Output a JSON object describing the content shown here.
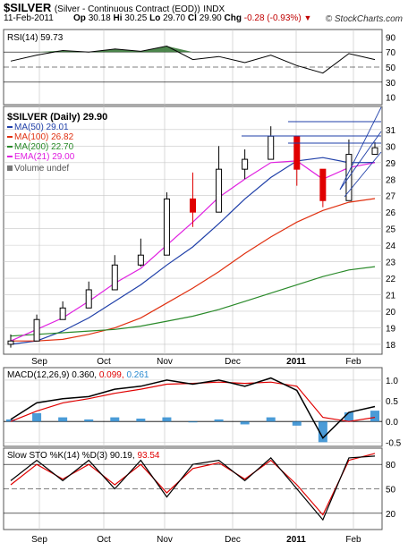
{
  "header": {
    "symbol": "$SILVER",
    "description": "(Silver - Continuous Contract (EOD))",
    "exchange": "INDX",
    "date": "11-Feb-2011",
    "open_label": "Op",
    "open": "30.18",
    "high_label": "Hi",
    "high": "30.25",
    "low_label": "Lo",
    "low": "29.70",
    "close_label": "Cl",
    "close": "29.90",
    "change_label": "Chg",
    "change": "-0.28 (-0.93%)",
    "brand": "© StockCharts.com"
  },
  "colors": {
    "ma50": "#1f3fa8",
    "ma100": "#e03010",
    "ma200": "#2a8a2a",
    "ema21": "#e020e0",
    "candle_up": "#000000",
    "candle_down": "#e00000",
    "rsi_fill": "#3a7a3a",
    "macd_line": "#000000",
    "macd_signal": "#e00000",
    "macd_hist": "#2a8ad0",
    "grid": "#c8c8c8"
  },
  "chart_data": [
    {
      "type": "line",
      "name": "rsi",
      "legend": "RSI(14) 59.73",
      "ylim": [
        0,
        100
      ],
      "yticks": [
        10,
        30,
        50,
        70,
        90
      ],
      "overbought": 70,
      "oversold": 30,
      "x": [
        "08-09",
        "08-23",
        "09-06",
        "09-20",
        "10-04",
        "10-18",
        "11-01",
        "11-15",
        "11-29",
        "12-13",
        "12-27",
        "01-10",
        "01-24",
        "02-07",
        "02-11"
      ],
      "values": [
        58,
        66,
        72,
        70,
        74,
        71,
        78,
        60,
        64,
        56,
        66,
        52,
        42,
        68,
        60
      ]
    },
    {
      "type": "candlestick",
      "name": "price",
      "title": "$SILVER (Daily) 29.90",
      "ylim": [
        17.4,
        32.4
      ],
      "yticks": [
        18,
        19,
        20,
        21,
        22,
        23,
        24,
        25,
        26,
        27,
        28,
        29,
        30,
        31
      ],
      "xticks": [
        "Sep",
        "Oct",
        "Nov",
        "Dec",
        "2011",
        "Feb"
      ],
      "x": [
        "08-09",
        "08-23",
        "09-06",
        "09-20",
        "10-04",
        "10-18",
        "11-01",
        "11-15",
        "11-29",
        "12-13",
        "12-27",
        "01-10",
        "01-24",
        "02-07",
        "02-11"
      ],
      "close": [
        18.2,
        19.5,
        20.2,
        21.3,
        22.8,
        23.4,
        26.8,
        26.0,
        28.6,
        29.2,
        30.6,
        28.6,
        26.7,
        29.5,
        29.9
      ],
      "high": [
        18.6,
        19.8,
        20.6,
        21.8,
        23.4,
        24.4,
        27.2,
        28.4,
        30.0,
        29.8,
        31.2,
        30.0,
        28.4,
        30.4,
        30.25
      ],
      "low": [
        17.8,
        19.0,
        19.7,
        20.9,
        21.7,
        22.7,
        25.0,
        25.1,
        26.4,
        28.0,
        29.6,
        27.6,
        26.3,
        28.8,
        29.7
      ],
      "series": [
        {
          "name": "MA(50) 29.01",
          "values": [
            18.0,
            18.2,
            18.8,
            19.6,
            20.6,
            21.6,
            22.8,
            23.9,
            25.3,
            26.8,
            28.1,
            29.1,
            29.3,
            29.0,
            29.01
          ]
        },
        {
          "name": "MA(100) 26.82",
          "values": [
            18.2,
            18.2,
            18.3,
            18.6,
            19.0,
            19.6,
            20.5,
            21.4,
            22.4,
            23.5,
            24.5,
            25.4,
            26.1,
            26.6,
            26.82
          ]
        },
        {
          "name": "MA(200) 22.70",
          "values": [
            18.5,
            18.6,
            18.7,
            18.8,
            18.9,
            19.1,
            19.4,
            19.7,
            20.1,
            20.6,
            21.1,
            21.6,
            22.1,
            22.5,
            22.7
          ]
        },
        {
          "name": "EMA(21) 29.00",
          "values": [
            18.2,
            18.9,
            19.6,
            20.6,
            21.7,
            22.6,
            24.0,
            25.4,
            26.9,
            28.0,
            29.0,
            29.1,
            28.0,
            28.7,
            29.0
          ]
        }
      ],
      "volume_label": "Volume undef"
    },
    {
      "type": "line",
      "name": "macd",
      "legend_label": "MACD(12,26,9)",
      "macd_value": "0.360",
      "signal_value": "0.099",
      "hist_value": "0.261",
      "ylim": [
        -0.6,
        1.3
      ],
      "yticks": [
        -0.5,
        0.0,
        0.5,
        1.0
      ],
      "x": [
        "08-09",
        "08-23",
        "09-06",
        "09-20",
        "10-04",
        "10-18",
        "11-01",
        "11-15",
        "11-29",
        "12-13",
        "12-27",
        "01-10",
        "01-24",
        "02-07",
        "02-11"
      ],
      "series": [
        {
          "name": "MACD",
          "values": [
            0.05,
            0.45,
            0.55,
            0.6,
            0.78,
            0.85,
            1.0,
            0.9,
            1.0,
            0.85,
            1.05,
            0.75,
            -0.4,
            0.22,
            0.36
          ]
        },
        {
          "name": "Signal",
          "values": [
            0.0,
            0.25,
            0.45,
            0.55,
            0.68,
            0.78,
            0.9,
            0.92,
            0.95,
            0.92,
            0.95,
            0.85,
            0.1,
            0.0,
            0.099
          ]
        },
        {
          "name": "Histogram",
          "values": [
            0.05,
            0.2,
            0.1,
            0.05,
            0.1,
            0.07,
            0.1,
            -0.02,
            0.05,
            -0.07,
            0.1,
            -0.1,
            -0.5,
            0.22,
            0.261
          ]
        }
      ]
    },
    {
      "type": "line",
      "name": "slow_sto",
      "legend_label": "Slow STO %K(14) %D(3)",
      "k_value": "90.19",
      "d_value": "93.54",
      "ylim": [
        0,
        100
      ],
      "yticks": [
        20,
        50,
        80
      ],
      "x": [
        "08-09",
        "08-23",
        "09-06",
        "09-20",
        "10-04",
        "10-18",
        "11-01",
        "11-15",
        "11-29",
        "12-13",
        "12-27",
        "01-10",
        "01-24",
        "02-07",
        "02-11"
      ],
      "series": [
        {
          "name": "%K",
          "values": [
            60,
            85,
            60,
            85,
            50,
            85,
            40,
            80,
            85,
            60,
            88,
            50,
            12,
            88,
            90.19
          ]
        },
        {
          "name": "%D",
          "values": [
            55,
            80,
            62,
            80,
            55,
            80,
            45,
            75,
            82,
            62,
            85,
            55,
            18,
            85,
            93.54
          ]
        }
      ],
      "xticks": [
        "Sep",
        "Oct",
        "Nov",
        "Dec",
        "2011",
        "Feb"
      ]
    }
  ]
}
